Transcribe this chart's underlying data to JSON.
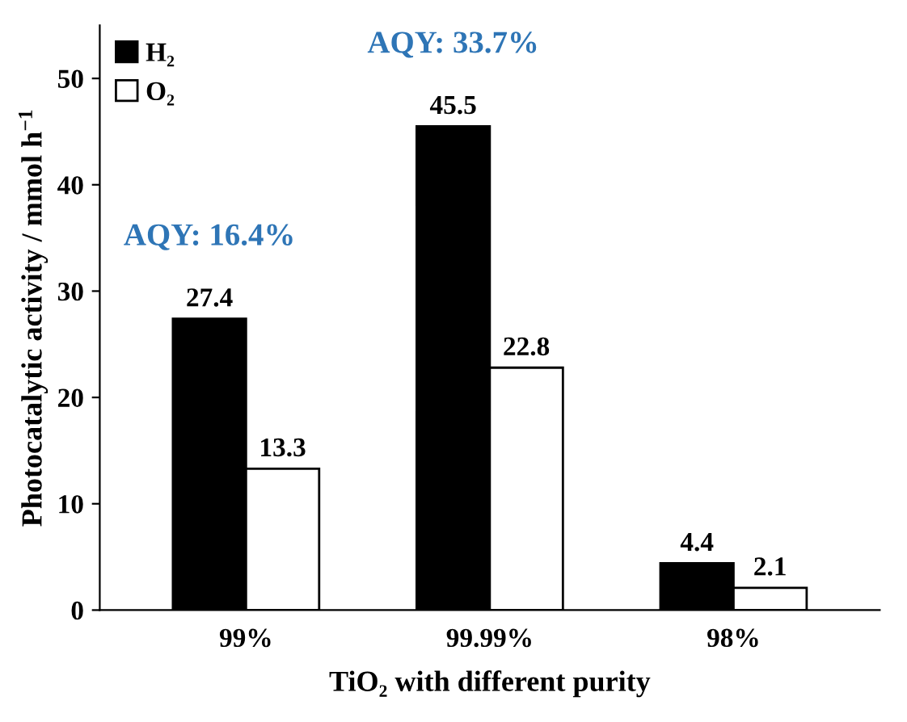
{
  "chart_data": {
    "type": "bar",
    "xlabel": "TiO₂ with different purity",
    "ylabel": "Photocatalytic activity / mmol h$^{−1}$",
    "categories": [
      "99%",
      "99.99%",
      "98%"
    ],
    "series": [
      {
        "name": "H₂",
        "color": "#000000",
        "values": [
          27.4,
          45.5,
          4.4
        ]
      },
      {
        "name": "O₂",
        "color": "#ffffff",
        "values": [
          13.3,
          22.8,
          2.1
        ]
      }
    ],
    "ylim": [
      0,
      55
    ],
    "yticks": [
      0,
      10,
      20,
      30,
      40,
      50
    ],
    "grid": false,
    "legend": "top left",
    "data_labels": true,
    "annotations": [
      "AQY: 16.4%",
      "AQY: 33.7%"
    ]
  }
}
